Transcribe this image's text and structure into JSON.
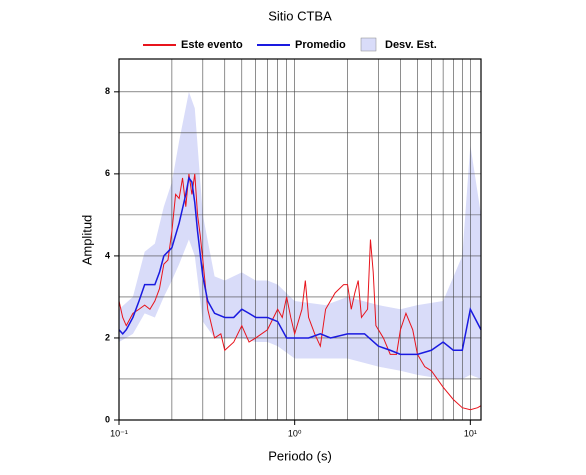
{
  "chart_data": {
    "type": "line",
    "title": "Sitio CTBA",
    "xlabel": "Periodo (s)",
    "ylabel": "Amplitud",
    "xscale": "log",
    "xlim": [
      0.1,
      11.5
    ],
    "ylim": [
      0,
      8.8
    ],
    "xticks": [
      {
        "value": 0.1,
        "label": "10⁻¹"
      },
      {
        "value": 1,
        "label": "10⁰"
      },
      {
        "value": 10,
        "label": "10¹"
      }
    ],
    "x_minor_ticks": [
      0.2,
      0.3,
      0.4,
      0.5,
      0.6,
      0.7,
      0.8,
      0.9,
      2,
      3,
      4,
      5,
      6,
      7,
      8,
      9
    ],
    "yticks": [
      0,
      2,
      4,
      6,
      8
    ],
    "y_minor_ticks": [
      1,
      3,
      5,
      7
    ],
    "grid": true,
    "band": {
      "name": "Desv. Est.",
      "color": "#d9dcf9",
      "x": [
        0.1,
        0.12,
        0.14,
        0.16,
        0.18,
        0.2,
        0.22,
        0.25,
        0.27,
        0.3,
        0.35,
        0.4,
        0.5,
        0.6,
        0.7,
        0.8,
        1.0,
        1.5,
        2.0,
        3.0,
        4.0,
        5.0,
        7.0,
        9.0,
        10,
        11.5
      ],
      "lower": [
        1.9,
        2.1,
        2.6,
        2.5,
        3.0,
        3.4,
        3.8,
        4.4,
        4.0,
        2.4,
        2.0,
        2.0,
        2.0,
        1.9,
        1.9,
        1.8,
        1.5,
        1.5,
        1.5,
        1.3,
        1.2,
        1.1,
        1.0,
        1.0,
        1.1,
        1.0
      ],
      "upper": [
        2.7,
        3.0,
        4.1,
        4.3,
        5.2,
        5.8,
        6.8,
        8.0,
        7.6,
        5.0,
        3.5,
        3.4,
        3.6,
        3.4,
        3.4,
        3.3,
        2.9,
        2.8,
        3.0,
        2.8,
        2.7,
        2.8,
        2.9,
        4.0,
        6.7,
        5.0
      ]
    },
    "series": [
      {
        "name": "Este evento",
        "color": "#e8141c",
        "x": [
          0.1,
          0.105,
          0.11,
          0.12,
          0.13,
          0.14,
          0.15,
          0.16,
          0.17,
          0.18,
          0.19,
          0.2,
          0.21,
          0.22,
          0.23,
          0.24,
          0.25,
          0.26,
          0.27,
          0.28,
          0.29,
          0.3,
          0.32,
          0.35,
          0.38,
          0.4,
          0.45,
          0.5,
          0.55,
          0.6,
          0.7,
          0.8,
          0.85,
          0.9,
          0.95,
          1.0,
          1.1,
          1.15,
          1.2,
          1.3,
          1.4,
          1.5,
          1.7,
          1.9,
          2.0,
          2.1,
          2.2,
          2.3,
          2.4,
          2.6,
          2.7,
          2.8,
          2.9,
          3.2,
          3.5,
          3.8,
          4.0,
          4.3,
          4.7,
          5.0,
          5.5,
          6,
          7,
          8,
          9,
          10,
          11,
          11.5
        ],
        "values": [
          2.9,
          2.5,
          2.3,
          2.6,
          2.7,
          2.8,
          2.7,
          2.9,
          3.2,
          3.8,
          3.9,
          4.6,
          5.5,
          5.4,
          5.9,
          5.2,
          6.0,
          5.5,
          6.0,
          5.0,
          4.5,
          3.9,
          2.7,
          2.0,
          2.1,
          1.7,
          1.9,
          2.3,
          1.9,
          2.0,
          2.2,
          2.7,
          2.5,
          3.0,
          2.5,
          2.1,
          2.7,
          3.4,
          2.5,
          2.1,
          1.8,
          2.7,
          3.1,
          3.3,
          3.3,
          2.7,
          3.1,
          3.4,
          2.5,
          2.7,
          4.4,
          3.6,
          2.3,
          2.0,
          1.6,
          1.6,
          2.2,
          2.6,
          2.2,
          1.6,
          1.3,
          1.2,
          0.8,
          0.5,
          0.3,
          0.25,
          0.3,
          0.35
        ]
      },
      {
        "name": "Promedio",
        "color": "#1a1ae0",
        "x": [
          0.1,
          0.105,
          0.11,
          0.12,
          0.13,
          0.14,
          0.15,
          0.16,
          0.17,
          0.18,
          0.2,
          0.22,
          0.24,
          0.25,
          0.26,
          0.27,
          0.28,
          0.3,
          0.32,
          0.35,
          0.4,
          0.45,
          0.5,
          0.55,
          0.6,
          0.7,
          0.8,
          0.9,
          1.0,
          1.2,
          1.4,
          1.6,
          2.0,
          2.5,
          3.0,
          3.5,
          4.0,
          5.0,
          6.0,
          7.0,
          8.0,
          9.0,
          10,
          11.5
        ],
        "values": [
          2.2,
          2.1,
          2.2,
          2.5,
          2.9,
          3.3,
          3.3,
          3.3,
          3.6,
          4.0,
          4.2,
          4.8,
          5.5,
          5.9,
          5.8,
          5.3,
          4.6,
          3.5,
          2.9,
          2.6,
          2.5,
          2.5,
          2.7,
          2.6,
          2.5,
          2.5,
          2.4,
          2.0,
          2.0,
          2.0,
          2.1,
          2.0,
          2.1,
          2.1,
          1.8,
          1.7,
          1.6,
          1.6,
          1.7,
          1.9,
          1.7,
          1.7,
          2.7,
          2.2
        ]
      }
    ]
  }
}
